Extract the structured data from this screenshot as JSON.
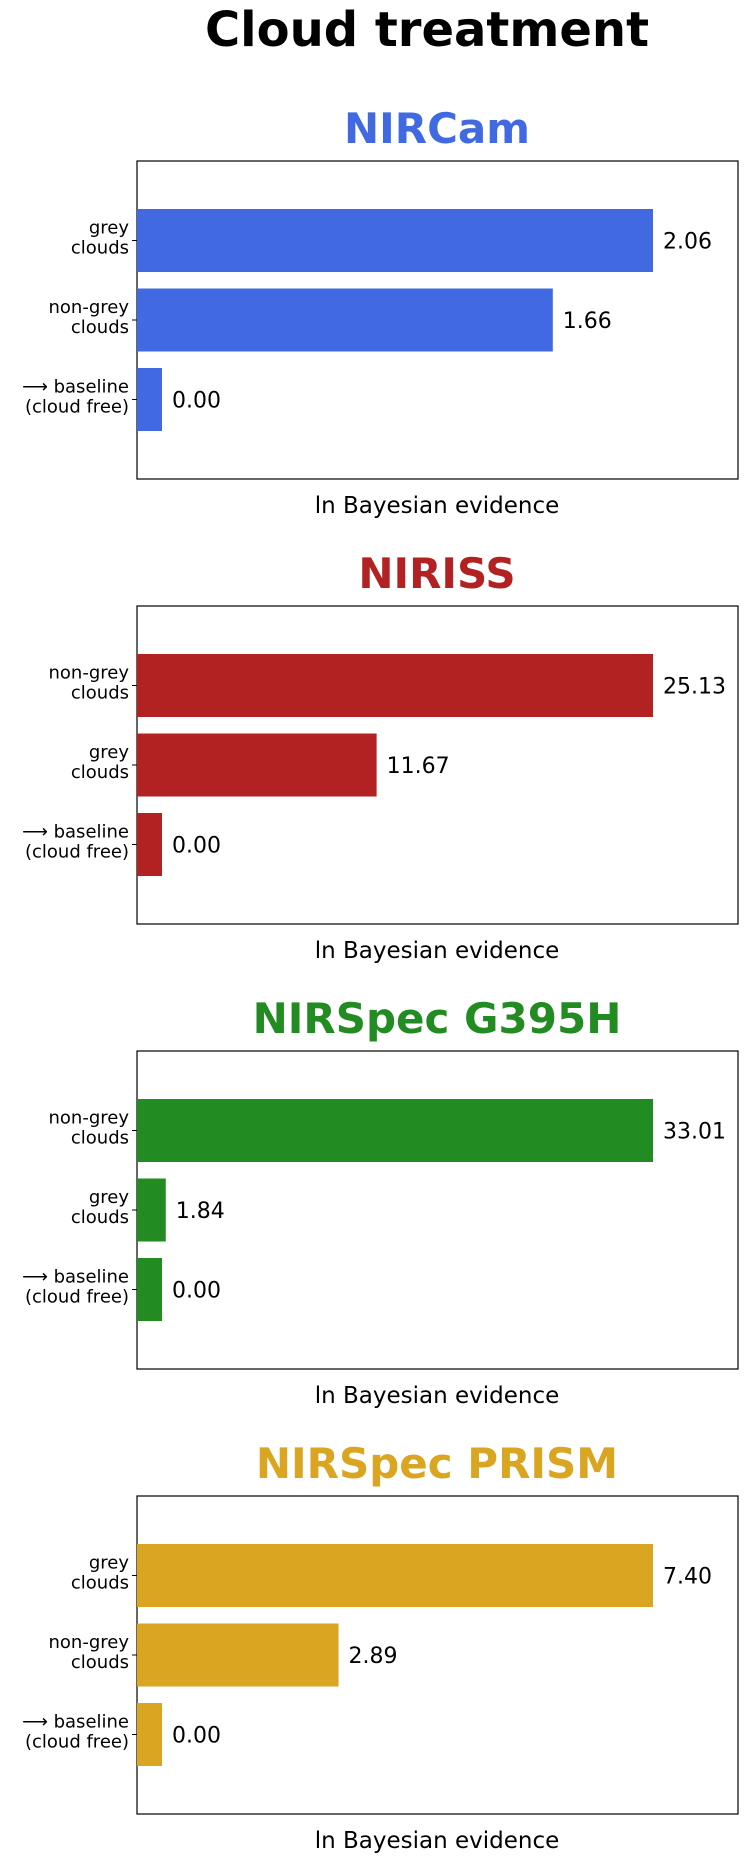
{
  "figure_title": "Cloud treatment",
  "chart_data": [
    {
      "type": "bar",
      "orientation": "horizontal",
      "title": "NIRCam",
      "title_color": "#4169E1",
      "bar_color": "#4169E1",
      "xlabel": "ln Bayesian evidence",
      "ylabel": "",
      "categories": [
        "grey\nclouds",
        "non-grey\nclouds",
        "⟶  baseline\n(cloud free)"
      ],
      "values": [
        2.06,
        1.66,
        0.0
      ],
      "value_labels": [
        "2.06",
        "1.66",
        "0.00"
      ],
      "grid": false
    },
    {
      "type": "bar",
      "orientation": "horizontal",
      "title": "NIRISS",
      "title_color": "#B22222",
      "bar_color": "#B22222",
      "xlabel": "ln Bayesian evidence",
      "ylabel": "",
      "categories": [
        "non-grey\nclouds",
        "grey\nclouds",
        "⟶  baseline\n(cloud free)"
      ],
      "values": [
        25.13,
        11.67,
        0.0
      ],
      "value_labels": [
        "25.13",
        "11.67",
        "0.00"
      ],
      "grid": false
    },
    {
      "type": "bar",
      "orientation": "horizontal",
      "title": "NIRSpec G395H",
      "title_color": "#228B22",
      "bar_color": "#228B22",
      "xlabel": "ln Bayesian evidence",
      "ylabel": "",
      "categories": [
        "non-grey\nclouds",
        "grey\nclouds",
        "⟶  baseline\n(cloud free)"
      ],
      "values": [
        33.01,
        1.84,
        0.0
      ],
      "value_labels": [
        "33.01",
        "1.84",
        "0.00"
      ],
      "grid": false
    },
    {
      "type": "bar",
      "orientation": "horizontal",
      "title": "NIRSpec PRISM",
      "title_color": "#DAA520",
      "bar_color": "#DAA520",
      "xlabel": "ln Bayesian evidence",
      "ylabel": "",
      "categories": [
        "grey\nclouds",
        "non-grey\nclouds",
        "⟶  baseline\n(cloud free)"
      ],
      "values": [
        7.4,
        2.89,
        0.0
      ],
      "value_labels": [
        "7.40",
        "2.89",
        "0.00"
      ],
      "grid": false
    }
  ]
}
